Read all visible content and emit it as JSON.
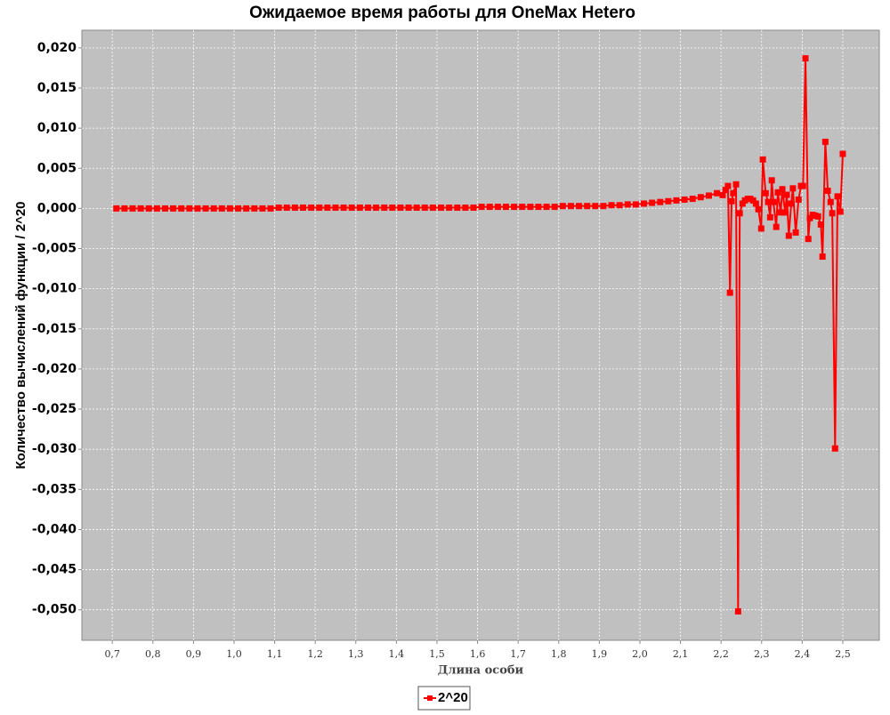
{
  "chart_data": {
    "type": "line",
    "title": "Ожидаемое время работы для OneMax Hetero",
    "x_label": "Длина особи",
    "y_label": "Количество вычислений функции / 2^20",
    "x": [
      0.71,
      0.73,
      0.75,
      0.77,
      0.79,
      0.81,
      0.83,
      0.85,
      0.87,
      0.89,
      0.91,
      0.93,
      0.95,
      0.97,
      0.99,
      1.01,
      1.03,
      1.05,
      1.07,
      1.09,
      1.11,
      1.13,
      1.15,
      1.17,
      1.19,
      1.21,
      1.23,
      1.25,
      1.27,
      1.29,
      1.31,
      1.33,
      1.35,
      1.37,
      1.39,
      1.41,
      1.43,
      1.45,
      1.47,
      1.49,
      1.51,
      1.53,
      1.55,
      1.57,
      1.59,
      1.61,
      1.63,
      1.65,
      1.67,
      1.69,
      1.71,
      1.73,
      1.75,
      1.77,
      1.79,
      1.81,
      1.83,
      1.85,
      1.87,
      1.89,
      1.91,
      1.93,
      1.95,
      1.97,
      1.99,
      2.01,
      2.03,
      2.05,
      2.07,
      2.09,
      2.11,
      2.13,
      2.15,
      2.17,
      2.19,
      2.204,
      2.211,
      2.217,
      2.222,
      2.226,
      2.23,
      2.237,
      2.242,
      2.246,
      2.253,
      2.259,
      2.266,
      2.272,
      2.279,
      2.286,
      2.292,
      2.299,
      2.303,
      2.31,
      2.316,
      2.321,
      2.325,
      2.329,
      2.336,
      2.34,
      2.347,
      2.351,
      2.358,
      2.362,
      2.367,
      2.373,
      2.377,
      2.384,
      2.391,
      2.397,
      2.402,
      2.408,
      2.415,
      2.419,
      2.426,
      2.432,
      2.439,
      2.446,
      2.45,
      2.457,
      2.463,
      2.47,
      2.474,
      2.481,
      2.487,
      2.494,
      2.5
    ],
    "series": [
      {
        "name": "2^20",
        "color": "#ff0000",
        "values": [
          0,
          0,
          0,
          0,
          0,
          0,
          0,
          0,
          0,
          0,
          0,
          0,
          0,
          0,
          0,
          0,
          0,
          0,
          0,
          0,
          0.0001,
          0.0001,
          0.0001,
          0.0001,
          0.0001,
          0.0001,
          0.0001,
          0.0001,
          0.0001,
          0.0001,
          0.0001,
          0.0001,
          0.0001,
          0.0001,
          0.0001,
          0.0001,
          0.0001,
          0.0001,
          0.0001,
          0.0001,
          0.0001,
          0.0001,
          0.0001,
          0.0001,
          0.0001,
          0.0002,
          0.0002,
          0.0002,
          0.0002,
          0.0002,
          0.0002,
          0.0002,
          0.0002,
          0.0002,
          0.0002,
          0.0003,
          0.0003,
          0.0003,
          0.0003,
          0.0003,
          0.0003,
          0.0004,
          0.0004,
          0.0005,
          0.0005,
          0.0006,
          0.0007,
          0.0008,
          0.0009,
          0.001,
          0.0011,
          0.0012,
          0.0014,
          0.0016,
          0.0019,
          0.00166,
          0.0023,
          0.0028,
          -0.0105,
          0.0009,
          0.0019,
          0.003,
          -0.0502,
          -0.0006,
          0.0006,
          0.001,
          0.0012,
          0.0012,
          0.001,
          0.0006,
          -0.0001,
          -0.0025,
          0.0061,
          0.0019,
          0.0008,
          -0.0011,
          0.0035,
          0.0008,
          -0.0023,
          0.002,
          -0.0005,
          0.0024,
          -0.0005,
          0.0017,
          -0.0034,
          0.0006,
          0.0025,
          -0.003,
          0.0011,
          0.0028,
          0.0028,
          0.0187,
          -0.0038,
          -0.0012,
          -0.0008,
          -0.0009,
          -0.001,
          -0.002,
          -0.006,
          0.0083,
          0.0022,
          0.0008,
          -0.0006,
          -0.0299,
          0.0015,
          -0.0004,
          0.0068
        ]
      }
    ],
    "xlim": [
      0.625,
      2.59
    ],
    "ylim": [
      -0.0538,
      0.0222
    ],
    "xticks": [
      {
        "value": 0.7,
        "label": "0,7"
      },
      {
        "value": 0.8,
        "label": "0,8"
      },
      {
        "value": 0.9,
        "label": "0,9"
      },
      {
        "value": 1.0,
        "label": "1,0"
      },
      {
        "value": 1.1,
        "label": "1,1"
      },
      {
        "value": 1.2,
        "label": "1,2"
      },
      {
        "value": 1.3,
        "label": "1,3"
      },
      {
        "value": 1.4,
        "label": "1,4"
      },
      {
        "value": 1.5,
        "label": "1,5"
      },
      {
        "value": 1.6,
        "label": "1,6"
      },
      {
        "value": 1.7,
        "label": "1,7"
      },
      {
        "value": 1.8,
        "label": "1,8"
      },
      {
        "value": 1.9,
        "label": "1,9"
      },
      {
        "value": 2.0,
        "label": "2,0"
      },
      {
        "value": 2.1,
        "label": "2,1"
      },
      {
        "value": 2.2,
        "label": "2,2"
      },
      {
        "value": 2.3,
        "label": "2,3"
      },
      {
        "value": 2.4,
        "label": "2,4"
      },
      {
        "value": 2.5,
        "label": "2,5"
      }
    ],
    "yticks": [
      {
        "value": 0.02,
        "label": "0,020"
      },
      {
        "value": 0.015,
        "label": "0,015"
      },
      {
        "value": 0.01,
        "label": "0,010"
      },
      {
        "value": 0.005,
        "label": "0,005"
      },
      {
        "value": 0,
        "label": "0,000"
      },
      {
        "value": -0.005,
        "label": "-0,005"
      },
      {
        "value": -0.01,
        "label": "-0,010"
      },
      {
        "value": -0.015,
        "label": "-0,015"
      },
      {
        "value": -0.02,
        "label": "-0,020"
      },
      {
        "value": -0.025,
        "label": "-0,025"
      },
      {
        "value": -0.03,
        "label": "-0,030"
      },
      {
        "value": -0.035,
        "label": "-0,035"
      },
      {
        "value": -0.04,
        "label": "-0,040"
      },
      {
        "value": -0.045,
        "label": "-0,045"
      },
      {
        "value": -0.05,
        "label": "-0,050"
      }
    ],
    "grid": true,
    "legend": "bottom"
  }
}
